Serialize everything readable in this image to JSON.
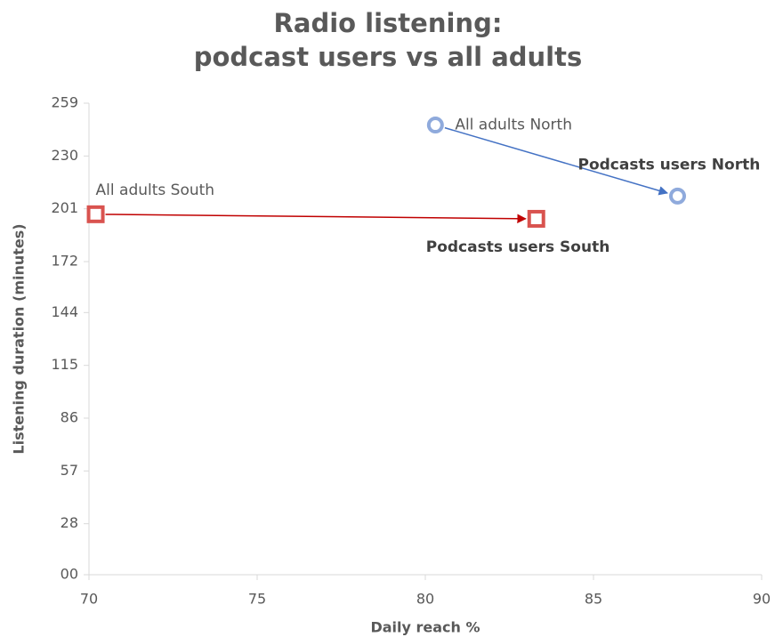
{
  "chart_data": {
    "type": "scatter",
    "title": [
      "Radio listening:",
      "podcast users vs all adults"
    ],
    "xlabel": "Daily reach %",
    "ylabel": "Listening duration (minutes)",
    "xlim": [
      70,
      90
    ],
    "xticks": [
      70,
      75,
      80,
      85,
      90
    ],
    "ylim": [
      0,
      259
    ],
    "yticks": [
      {
        "value": 0,
        "label": "00"
      },
      28,
      57,
      86,
      115,
      144,
      172,
      201,
      230,
      259
    ],
    "series": [
      {
        "color": "#8faadc",
        "arrow_color": "#4472c4",
        "marker": "circle",
        "x": [
          80.3,
          87.5
        ],
        "values": [
          247,
          208
        ],
        "labels": [
          "All adults North",
          "Podcasts users North"
        ]
      },
      {
        "color": "#d9534f",
        "arrow_color": "#c00000",
        "marker": "square",
        "x": [
          70.2,
          83.3
        ],
        "values": [
          198,
          195.5
        ],
        "labels": [
          "All adults South",
          "Podcasts users South"
        ]
      }
    ]
  }
}
